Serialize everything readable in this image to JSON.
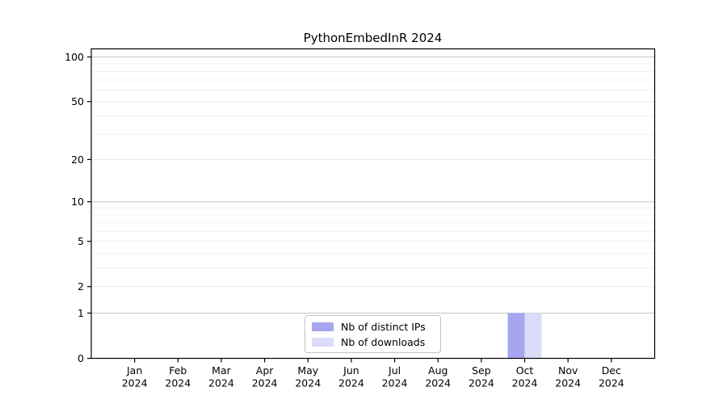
{
  "figure": {
    "background": "#ffffff"
  },
  "chart_data": {
    "type": "bar",
    "title": "PythonEmbedInR 2024",
    "x": {
      "categories": [
        "Jan",
        "Feb",
        "Mar",
        "Apr",
        "May",
        "Jun",
        "Jul",
        "Aug",
        "Sep",
        "Oct",
        "Nov",
        "Dec"
      ],
      "year_label": "2024"
    },
    "series": [
      {
        "name": "Nb of distinct IPs",
        "color": "#a6a6f0",
        "values": [
          0,
          0,
          0,
          0,
          0,
          0,
          0,
          0,
          0,
          1,
          0,
          0
        ]
      },
      {
        "name": "Nb of downloads",
        "color": "#dcdcf8",
        "values": [
          0,
          0,
          0,
          0,
          0,
          0,
          0,
          0,
          0,
          1,
          0,
          0
        ]
      }
    ],
    "yscale": "log1p",
    "ylim": [
      0,
      113
    ],
    "y_ticks": [
      0,
      1,
      2,
      5,
      10,
      20,
      50,
      100
    ],
    "y_minor_gridlines": [
      3,
      4,
      6,
      7,
      8,
      9,
      30,
      40,
      60,
      70,
      80,
      90
    ],
    "grid": {
      "major_values": [
        1,
        10,
        100
      ],
      "major_color": "#c6c6c6",
      "mid_color": "#e9e9e9",
      "minor_color": "#f1f1f1",
      "axis_color": "#000000"
    },
    "legend": {
      "position": "bottom-center",
      "items": [
        "Nb of distinct IPs",
        "Nb of downloads"
      ]
    }
  }
}
